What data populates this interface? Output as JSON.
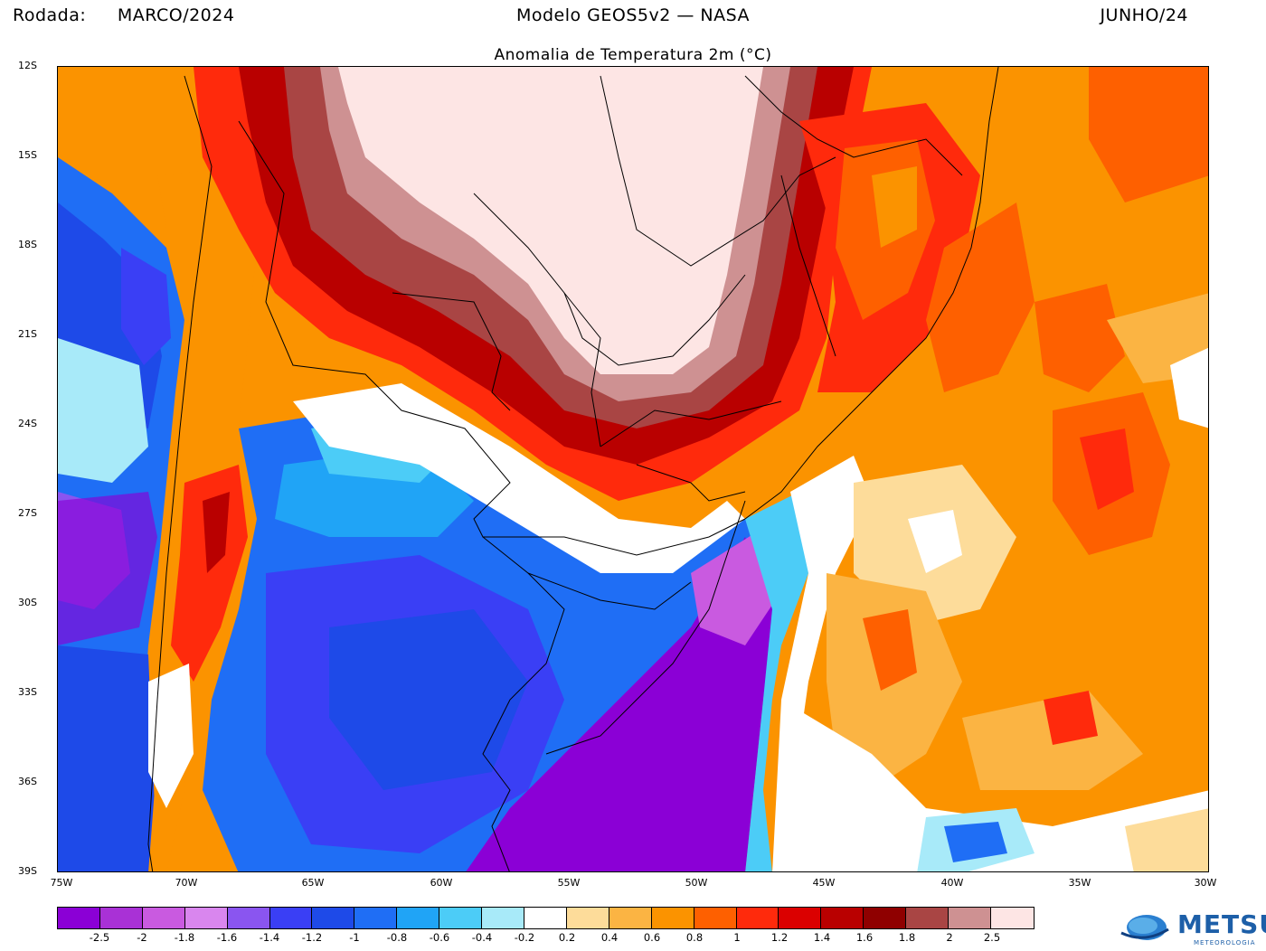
{
  "header": {
    "run_label": "Rodada:",
    "run_value": "MARCO/2024",
    "model": "Modelo GEOS5v2 — NASA",
    "period": "JUNHO/24"
  },
  "map": {
    "title": "Anomalia de Temperatura 2m (°C)",
    "lat_labels": [
      "12S",
      "15S",
      "18S",
      "21S",
      "24S",
      "27S",
      "30S",
      "33S",
      "36S",
      "39S"
    ],
    "lon_labels": [
      "75W",
      "70W",
      "65W",
      "60W",
      "55W",
      "50W",
      "45W",
      "40W",
      "35W",
      "30W"
    ]
  },
  "colorbar": {
    "colors": [
      "#8b00d6",
      "#a931d6",
      "#c95ae0",
      "#d986ee",
      "#8a55f0",
      "#3a3ff5",
      "#1e4ae8",
      "#1f6ef5",
      "#20a4f6",
      "#4cccf7",
      "#a8eaf9",
      "#ffffff",
      "#fddc9a",
      "#fbb443",
      "#fb9300",
      "#fe6000",
      "#ff2a0c",
      "#db0000",
      "#b90000",
      "#8f0000",
      "#a94544",
      "#ce9192",
      "#fde5e4"
    ],
    "ticks": [
      "-2.5",
      "-2",
      "-1.8",
      "-1.6",
      "-1.4",
      "-1.2",
      "-1",
      "-0.8",
      "-0.6",
      "-0.4",
      "-0.2",
      "0.2",
      "0.4",
      "0.6",
      "0.8",
      "1",
      "1.2",
      "1.4",
      "1.6",
      "1.8",
      "2",
      "2.5"
    ]
  },
  "logo": {
    "name": "METSUL",
    "subtitle": "METEOROLOGIA",
    "brand_color": "#1d5fa8"
  }
}
